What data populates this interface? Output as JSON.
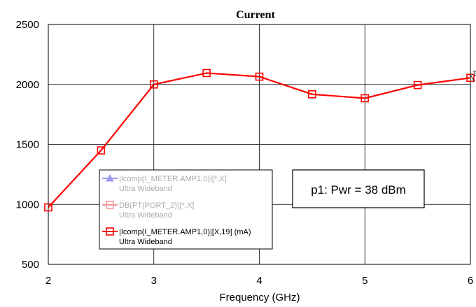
{
  "chart_data": {
    "type": "line",
    "title": "Current",
    "xlabel": "Frequency (GHz)",
    "ylabel": "",
    "xlim": [
      2,
      6
    ],
    "ylim": [
      500,
      2500
    ],
    "x_ticks": [
      "2",
      "3",
      "4",
      "5",
      "6"
    ],
    "y_ticks": [
      "500",
      "1000",
      "1500",
      "2000",
      "2500"
    ],
    "grid": true,
    "series": [
      {
        "name": "|Icomp(I_METER.AMP1,0)|[X,19] (mA)",
        "x": [
          2,
          2.5,
          3,
          3.5,
          4,
          4.5,
          5,
          5.5,
          6
        ],
        "y": [
          975,
          1450,
          2000,
          2095,
          2065,
          1918,
          1885,
          1995,
          2055
        ],
        "color": "#ff0000",
        "marker": "square"
      }
    ],
    "legend": {
      "placement": "bottom-center",
      "entries": [
        {
          "label": "|Icomp(I_METER.AMP1,0)|[*,X]",
          "sublabel": "Ultra Wideband",
          "color": "#9b9bf0",
          "marker": "triangle",
          "dimmed": true
        },
        {
          "label": "DB(PT(PORT_2))[*,X]",
          "sublabel": "Ultra Wideband",
          "color": "#f29a9a",
          "marker": "square",
          "dimmed": true
        },
        {
          "label": "|Icomp(I_METER.AMP1,0)|[X,19] (mA)",
          "sublabel": "Ultra Wideband",
          "color": "#ff0000",
          "marker": "square",
          "dimmed": false
        }
      ]
    },
    "annotations": [
      {
        "text": "p1: Pwr = 38 dBm"
      },
      {
        "text": "p1"
      }
    ]
  }
}
